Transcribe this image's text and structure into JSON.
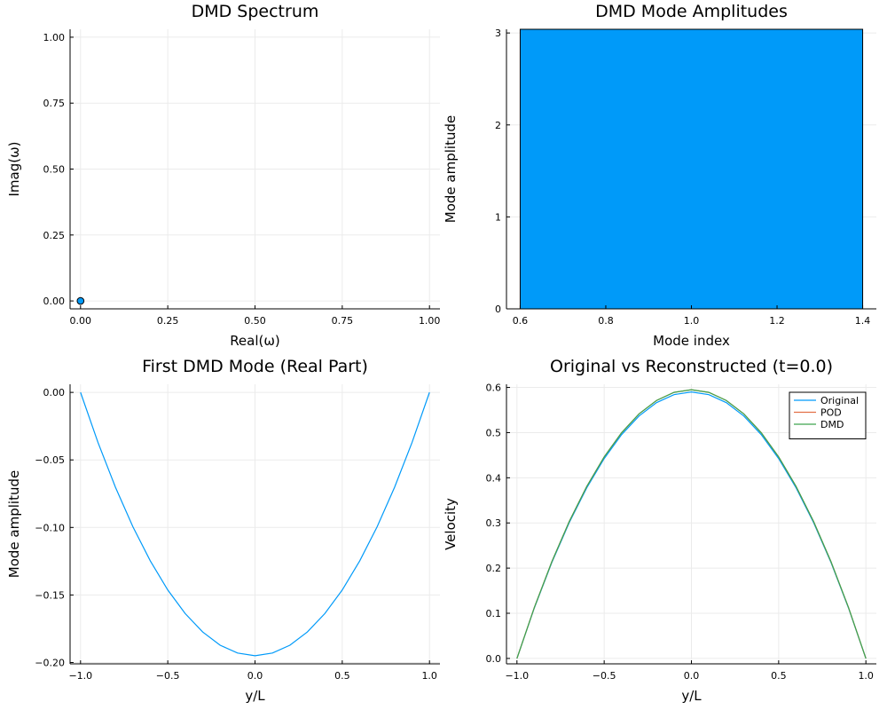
{
  "chart_data": [
    {
      "id": "spectrum",
      "type": "scatter",
      "title": "DMD Spectrum",
      "xlabel": "Real(ω)",
      "ylabel": "Imag(ω)",
      "xlim": [
        -0.03,
        1.03
      ],
      "ylim": [
        -0.03,
        1.03
      ],
      "xticks": [
        0.0,
        0.25,
        0.5,
        0.75,
        1.0
      ],
      "xtick_labels": [
        "0.00",
        "0.25",
        "0.50",
        "0.75",
        "1.00"
      ],
      "yticks": [
        0.0,
        0.25,
        0.5,
        0.75,
        1.0
      ],
      "ytick_labels": [
        "0.00",
        "0.25",
        "0.50",
        "0.75",
        "1.00"
      ],
      "grid": true,
      "series": [
        {
          "color": "#009af9",
          "x": [
            0.0
          ],
          "y": [
            0.0
          ]
        }
      ]
    },
    {
      "id": "amplitudes",
      "type": "bar",
      "title": "DMD Mode Amplitudes",
      "xlabel": "Mode index",
      "ylabel": "Mode amplitude",
      "xlim": [
        0.568,
        1.432
      ],
      "ylim": [
        0,
        3.04
      ],
      "xticks": [
        0.6,
        0.8,
        1.0,
        1.2,
        1.4
      ],
      "xtick_labels": [
        "0.6",
        "0.8",
        "1.0",
        "1.2",
        "1.4"
      ],
      "yticks": [
        0,
        1,
        2,
        3
      ],
      "ytick_labels": [
        "0",
        "1",
        "2",
        "3"
      ],
      "grid": true,
      "bars": [
        {
          "x0": 0.6,
          "x1": 1.4,
          "value": 3.04,
          "color": "#009af9"
        }
      ]
    },
    {
      "id": "first_mode",
      "type": "line",
      "title": "First DMD Mode (Real Part)",
      "xlabel": "y/L",
      "ylabel": "Mode amplitude",
      "xlim": [
        -1.06,
        1.06
      ],
      "ylim": [
        -0.201,
        0.006
      ],
      "xticks": [
        -1.0,
        -0.5,
        0.0,
        0.5,
        1.0
      ],
      "xtick_labels": [
        "−1.0",
        "−0.5",
        "0.0",
        "0.5",
        "1.0"
      ],
      "yticks": [
        0.0,
        -0.05,
        -0.1,
        -0.15,
        -0.2
      ],
      "ytick_labels": [
        "0.00",
        "−0.05",
        "−0.10",
        "−0.15",
        "−0.20"
      ],
      "grid": true,
      "series": [
        {
          "color": "#009af9",
          "x": [
            -1.0,
            -0.9,
            -0.8,
            -0.7,
            -0.6,
            -0.5,
            -0.4,
            -0.3,
            -0.2,
            -0.1,
            0.0,
            0.1,
            0.2,
            0.3,
            0.4,
            0.5,
            0.6,
            0.7,
            0.8,
            0.9,
            1.0
          ],
          "y": [
            0.0,
            -0.0371,
            -0.0702,
            -0.0995,
            -0.1248,
            -0.1463,
            -0.1638,
            -0.1774,
            -0.1872,
            -0.193,
            -0.195,
            -0.193,
            -0.1872,
            -0.1774,
            -0.1638,
            -0.1463,
            -0.1248,
            -0.0995,
            -0.0702,
            -0.0371,
            0.0
          ]
        }
      ]
    },
    {
      "id": "reconstruction",
      "type": "line",
      "title": "Original vs Reconstructed (t=0.0)",
      "xlabel": "y/L",
      "ylabel": "Velocity",
      "xlim": [
        -1.06,
        1.06
      ],
      "ylim": [
        -0.012,
        0.607
      ],
      "xticks": [
        -1.0,
        -0.5,
        0.0,
        0.5,
        1.0
      ],
      "xtick_labels": [
        "−1.0",
        "−0.5",
        "0.0",
        "0.5",
        "1.0"
      ],
      "yticks": [
        0.0,
        0.1,
        0.2,
        0.3,
        0.4,
        0.5,
        0.6
      ],
      "ytick_labels": [
        "0.0",
        "0.1",
        "0.2",
        "0.3",
        "0.4",
        "0.5",
        "0.6"
      ],
      "grid": true,
      "legend": "top-right",
      "series": [
        {
          "name": "Original",
          "color": "#009af9",
          "x": [
            -1.0,
            -0.9,
            -0.8,
            -0.7,
            -0.6,
            -0.5,
            -0.4,
            -0.3,
            -0.2,
            -0.1,
            0.0,
            0.1,
            0.2,
            0.3,
            0.4,
            0.5,
            0.6,
            0.7,
            0.8,
            0.9,
            1.0
          ],
          "y": [
            0.0,
            0.1121,
            0.2124,
            0.3009,
            0.3776,
            0.4425,
            0.4956,
            0.5369,
            0.5664,
            0.5841,
            0.59,
            0.5841,
            0.5664,
            0.5369,
            0.4956,
            0.4425,
            0.3776,
            0.3009,
            0.2124,
            0.1121,
            0.0
          ]
        },
        {
          "name": "POD",
          "color": "#e26f46",
          "x": [
            -1.0,
            -0.9,
            -0.8,
            -0.7,
            -0.6,
            -0.5,
            -0.4,
            -0.3,
            -0.2,
            -0.1,
            0.0,
            0.1,
            0.2,
            0.3,
            0.4,
            0.5,
            0.6,
            0.7,
            0.8,
            0.9,
            1.0
          ],
          "y": [
            0.0,
            0.1131,
            0.2142,
            0.3034,
            0.3808,
            0.4463,
            0.4998,
            0.5415,
            0.5712,
            0.5891,
            0.595,
            0.5891,
            0.5712,
            0.5415,
            0.4998,
            0.4463,
            0.3808,
            0.3034,
            0.2142,
            0.1131,
            0.0
          ]
        },
        {
          "name": "DMD",
          "color": "#3da44d",
          "x": [
            -1.0,
            -0.9,
            -0.8,
            -0.7,
            -0.6,
            -0.5,
            -0.4,
            -0.3,
            -0.2,
            -0.1,
            0.0,
            0.1,
            0.2,
            0.3,
            0.4,
            0.5,
            0.6,
            0.7,
            0.8,
            0.9,
            1.0
          ],
          "y": [
            0.0,
            0.1131,
            0.2142,
            0.3034,
            0.3808,
            0.4463,
            0.4998,
            0.5415,
            0.5712,
            0.5891,
            0.595,
            0.5891,
            0.5712,
            0.5415,
            0.4998,
            0.4463,
            0.3808,
            0.3034,
            0.2142,
            0.1131,
            0.0
          ]
        }
      ]
    }
  ]
}
